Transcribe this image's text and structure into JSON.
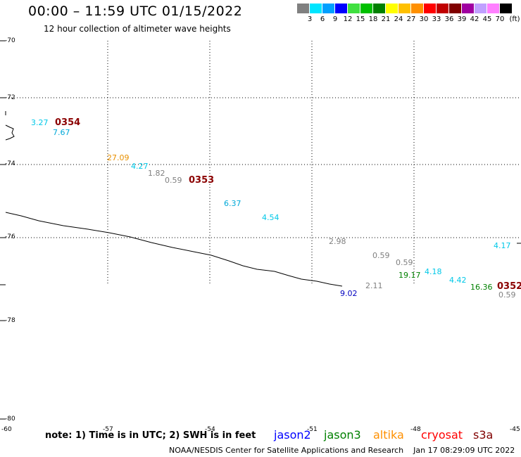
{
  "header": {
    "title": "00:00 – 11:59 UTC 01/15/2022",
    "subtitle": "12 hour collection of altimeter wave heights"
  },
  "legend": {
    "colors": [
      "#808080",
      "#00e5ff",
      "#00a0ff",
      "#0000ff",
      "#40e040",
      "#00c000",
      "#008000",
      "#ffff00",
      "#ffc000",
      "#ff9000",
      "#ff0000",
      "#c00000",
      "#800000",
      "#a000a0",
      "#c0a0ff",
      "#ff80ff",
      "#000000"
    ],
    "labels": [
      "3",
      "6",
      "9",
      "12",
      "15",
      "18",
      "21",
      "24",
      "27",
      "30",
      "33",
      "36",
      "39",
      "42",
      "45",
      "70"
    ],
    "unit": "(ft)"
  },
  "map": {
    "lat_labels": [
      "-70",
      "-72",
      "-74",
      "-76",
      "-78",
      "-80"
    ],
    "lon_labels": [
      "-57",
      "-54",
      "-51",
      "-48",
      "-45",
      "-60"
    ],
    "orbits": [
      "0354",
      "0353",
      "0352"
    ],
    "values": [
      {
        "text": "3.27",
        "color": "#00c8e8"
      },
      {
        "text": "7.67",
        "color": "#00a8d8"
      },
      {
        "text": "27.09",
        "color": "#e89000"
      },
      {
        "text": "4.27",
        "color": "#00c8e8"
      },
      {
        "text": "1.82",
        "color": "#808080"
      },
      {
        "text": "0.59",
        "color": "#808080"
      },
      {
        "text": "6.37",
        "color": "#00a8d8"
      },
      {
        "text": "4.54",
        "color": "#00c8e8"
      },
      {
        "text": "2.98",
        "color": "#808080"
      },
      {
        "text": "0.59",
        "color": "#808080"
      },
      {
        "text": "0.59",
        "color": "#808080"
      },
      {
        "text": "19.17",
        "color": "#008000"
      },
      {
        "text": "4.18",
        "color": "#00c8e8"
      },
      {
        "text": "4.42",
        "color": "#00c8e8"
      },
      {
        "text": "16.36",
        "color": "#008000"
      },
      {
        "text": "0.59",
        "color": "#808080"
      },
      {
        "text": "4.17",
        "color": "#00c8e8"
      },
      {
        "text": "2.11",
        "color": "#808080"
      },
      {
        "text": "9.02",
        "color": "#0000c0"
      }
    ]
  },
  "footer": {
    "note": "note: 1) Time is in UTC; 2) SWH is in feet",
    "satellites": [
      {
        "name": "jason2",
        "color": "#0000ff"
      },
      {
        "name": "jason3",
        "color": "#008000"
      },
      {
        "name": "altika",
        "color": "#ff9000"
      },
      {
        "name": "cryosat",
        "color": "#ff0000"
      },
      {
        "name": "s3a",
        "color": "#800000"
      }
    ],
    "credit": "NOAA/NESDIS Center for Satellite Applications and Research",
    "timestamp": "Jan 17 08:29:09 UTC 2022"
  }
}
